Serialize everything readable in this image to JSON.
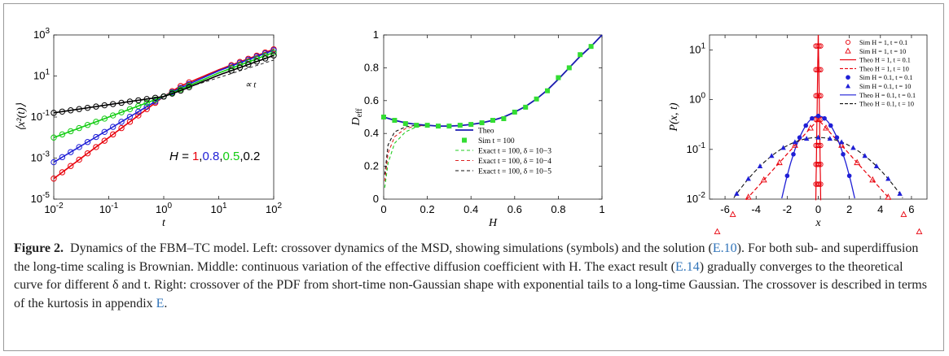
{
  "caption": {
    "figure_label": "Figure 2.",
    "part1": "Dynamics of the FBM–TC model. Left: crossover dynamics of the MSD, showing simulations (symbols) and the solution (",
    "ref1": "E.10",
    "part2": "). For both sub- and superdiffusion the long-time scaling is Brownian. Middle: continuous variation of the effective diffusion coefficient with H. The exact result (",
    "ref2": "E.14",
    "part3": ") gradually converges to the theoretical curve for different δ and t. Right: crossover of the PDF from short-time non-Gaussian shape with exponential tails to a long-time Gaussian. The crossover is described in terms of the kurtosis in appendix ",
    "ref3": "E",
    "part4": "."
  },
  "chart_data": [
    {
      "panel": "left",
      "type": "line",
      "xscale": "log",
      "yscale": "log",
      "xlim": [
        0.01,
        100
      ],
      "ylim": [
        1e-05,
        1000
      ],
      "xlabel": "t",
      "ylabel": "⟨x²(t)⟩",
      "xticks": [
        "10-2",
        "10-1",
        "100",
        "101",
        "102"
      ],
      "yticks": [
        "10-5",
        "10-3",
        "10-1",
        "101",
        "103"
      ],
      "annotation_slope": "∝ t",
      "annotation_H_prefix": "H = ",
      "H_values": [
        {
          "label": "1",
          "color": "#e8000b",
          "H": 1.0
        },
        {
          "label": "0.8",
          "color": "#1f1fd6",
          "H": 0.8
        },
        {
          "label": "0.5",
          "color": "#11cc11",
          "H": 0.5
        },
        {
          "label": "0.2",
          "color": "#000000",
          "H": 0.2
        }
      ],
      "series": [
        {
          "H": 1.0,
          "color": "#e8000b",
          "x": [
            0.01,
            0.1,
            1,
            2,
            10,
            100
          ],
          "y": [
            0.0001,
            0.01,
            1,
            3.2,
            20,
            200
          ]
        },
        {
          "H": 0.8,
          "color": "#1f1fd6",
          "x": [
            0.01,
            0.1,
            1,
            2,
            10,
            100
          ],
          "y": [
            0.00063,
            0.025,
            1,
            2.6,
            18,
            180
          ]
        },
        {
          "H": 0.5,
          "color": "#11cc11",
          "x": [
            0.01,
            0.1,
            1,
            2,
            10,
            100
          ],
          "y": [
            0.01,
            0.1,
            1,
            2.2,
            14,
            140
          ]
        },
        {
          "H": 0.2,
          "color": "#000000",
          "x": [
            0.01,
            0.1,
            1,
            2,
            10,
            100
          ],
          "y": [
            0.16,
            0.4,
            1,
            1.9,
            11,
            100
          ]
        }
      ],
      "reference_line": {
        "x": [
          3,
          100
        ],
        "y": [
          3,
          60
        ],
        "style": "dashed"
      }
    },
    {
      "panel": "middle",
      "type": "line",
      "xlim": [
        0,
        1
      ],
      "ylim": [
        0,
        1
      ],
      "xlabel": "H",
      "ylabel": "D_eff",
      "xticks": [
        "0",
        "0.2",
        "0.4",
        "0.6",
        "0.8",
        "1"
      ],
      "yticks": [
        "0",
        "0.2",
        "0.4",
        "0.6",
        "0.8",
        "1"
      ],
      "legend": [
        {
          "label": "Theo",
          "color": "#1a1ab0",
          "style": "solid"
        },
        {
          "label": "Sim t = 100",
          "color": "#33dd33",
          "style": "square"
        },
        {
          "label": "Exact t = 100, δ = 10−3",
          "color": "#22cc22",
          "style": "dashed"
        },
        {
          "label": "Exact t = 100, δ = 10−4",
          "color": "#dd2222",
          "style": "dashed"
        },
        {
          "label": "Exact t = 100, δ = 10−5",
          "color": "#111111",
          "style": "dashed"
        }
      ],
      "theo": {
        "x": [
          0,
          0.05,
          0.1,
          0.15,
          0.2,
          0.25,
          0.3,
          0.35,
          0.4,
          0.45,
          0.5,
          0.55,
          0.6,
          0.65,
          0.7,
          0.75,
          0.8,
          0.85,
          0.9,
          0.95,
          1.0
        ],
        "y": [
          0.5,
          0.48,
          0.465,
          0.455,
          0.45,
          0.445,
          0.445,
          0.448,
          0.455,
          0.465,
          0.48,
          0.5,
          0.53,
          0.565,
          0.61,
          0.665,
          0.73,
          0.8,
          0.87,
          0.93,
          1.0
        ]
      },
      "sim": {
        "x": [
          0,
          0.05,
          0.1,
          0.15,
          0.2,
          0.25,
          0.3,
          0.35,
          0.4,
          0.45,
          0.5,
          0.55,
          0.6,
          0.65,
          0.7,
          0.75,
          0.8,
          0.85,
          0.9,
          0.95
        ],
        "y": [
          0.5,
          0.48,
          0.46,
          0.45,
          0.45,
          0.445,
          0.445,
          0.45,
          0.455,
          0.465,
          0.48,
          0.49,
          0.53,
          0.56,
          0.61,
          0.66,
          0.74,
          0.8,
          0.88,
          0.93
        ]
      },
      "exact": [
        {
          "color": "#22cc22",
          "x": [
            0.005,
            0.02,
            0.05,
            0.1,
            0.15,
            0.2
          ],
          "y": [
            0.07,
            0.22,
            0.34,
            0.41,
            0.44,
            0.45
          ]
        },
        {
          "color": "#dd2222",
          "x": [
            0.005,
            0.02,
            0.05,
            0.1,
            0.15,
            0.2
          ],
          "y": [
            0.11,
            0.28,
            0.38,
            0.43,
            0.445,
            0.45
          ]
        },
        {
          "color": "#111111",
          "x": [
            0.005,
            0.02,
            0.05,
            0.1,
            0.15,
            0.2
          ],
          "y": [
            0.15,
            0.33,
            0.41,
            0.44,
            0.45,
            0.45
          ]
        }
      ]
    },
    {
      "panel": "right",
      "type": "line",
      "yscale": "log",
      "xlim": [
        -7,
        7
      ],
      "ylim": [
        0.01,
        20
      ],
      "xlabel": "x",
      "ylabel": "P(x, t)",
      "xticks": [
        "-6",
        "-4",
        "-2",
        "0",
        "2",
        "4",
        "6"
      ],
      "yticks": [
        "10-2",
        "10-1",
        "100",
        "101"
      ],
      "legend": [
        {
          "label": "Sim H = 1, t = 0.1",
          "color": "#e8000b",
          "marker": "circle-open"
        },
        {
          "label": "Sim H = 1, t = 10",
          "color": "#e8000b",
          "marker": "triangle-open"
        },
        {
          "label": "Theo H = 1, t = 0.1",
          "color": "#e8000b",
          "line": "solid"
        },
        {
          "label": "Theo H = 1, t = 10",
          "color": "#e8000b",
          "line": "dashed"
        },
        {
          "label": "Sim H = 0.1, t = 0.1",
          "color": "#1f1fd6",
          "marker": "circle-filled"
        },
        {
          "label": "Sim H = 0.1, t = 10",
          "color": "#1f1fd6",
          "marker": "triangle-filled"
        },
        {
          "label": "Theo H = 0.1, t = 0.1",
          "color": "#1f1fd6",
          "line": "solid"
        },
        {
          "label": "Theo H = 0.1, t = 10",
          "color": "#111111",
          "line": "dashed"
        }
      ]
    }
  ]
}
